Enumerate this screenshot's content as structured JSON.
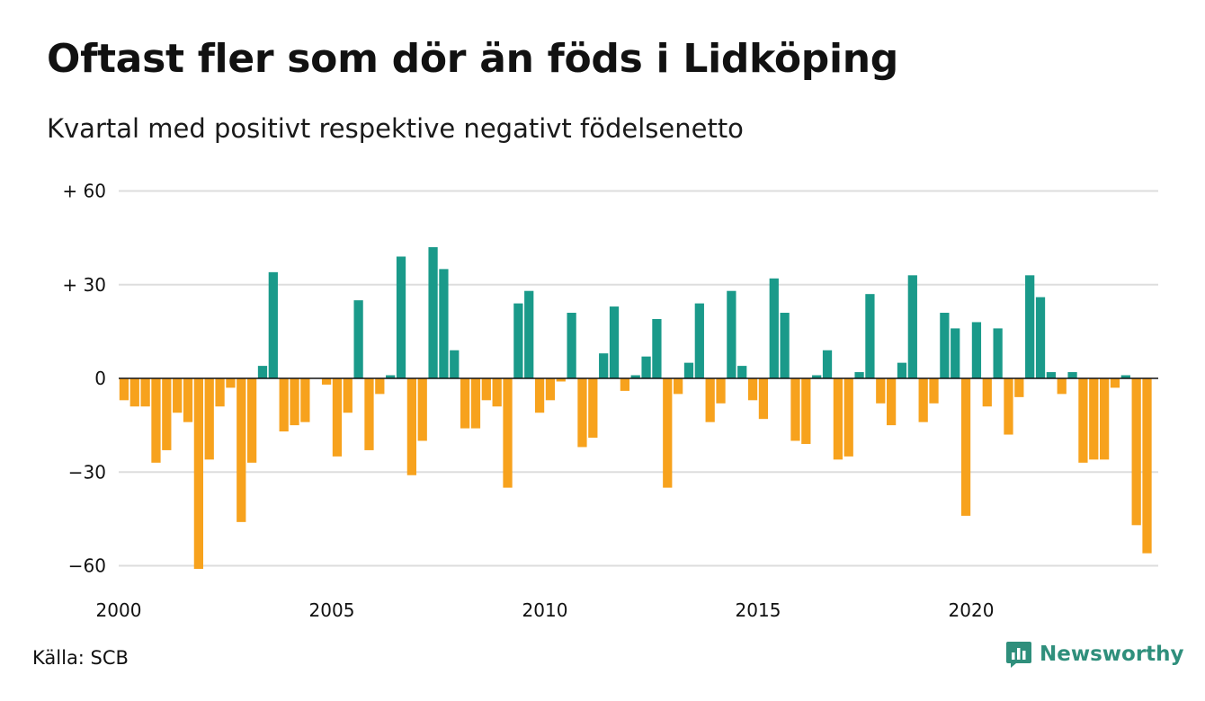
{
  "title": "Oftast fler som dör än föds i Lidköping",
  "subtitle": "Kvartal med positivt respektive negativt födelsenetto",
  "source": "Källa: SCB",
  "brand": {
    "name": "Newsworthy",
    "icon": "newsworthy-logo-icon",
    "color": "#2f8f7c"
  },
  "chart_data": {
    "type": "bar",
    "x_start": "2000 Q1",
    "x_ticks": [
      "2000",
      "2005",
      "2010",
      "2015",
      "2020"
    ],
    "y_ticks": [
      {
        "value": 60,
        "label": "+ 60"
      },
      {
        "value": 30,
        "label": "+ 30"
      },
      {
        "value": 0,
        "label": "0"
      },
      {
        "value": -30,
        "label": "−30"
      },
      {
        "value": -60,
        "label": "−60"
      }
    ],
    "ylim": [
      -62,
      62
    ],
    "grid": true,
    "colors": {
      "positive": "#1a9a8a",
      "negative": "#f7a21d",
      "grid": "#dddddd",
      "baseline": "#111111"
    },
    "values": [
      -7,
      -9,
      -9,
      -27,
      -23,
      -11,
      -14,
      -61,
      -26,
      -9,
      -3,
      -46,
      -27,
      4,
      34,
      -17,
      -15,
      -14,
      0,
      -2,
      -25,
      -11,
      25,
      -23,
      -5,
      1,
      39,
      -31,
      -20,
      42,
      35,
      9,
      -16,
      -16,
      -7,
      -9,
      -35,
      24,
      28,
      -11,
      -7,
      -1,
      21,
      -22,
      -19,
      8,
      23,
      -4,
      1,
      7,
      19,
      -35,
      -5,
      5,
      24,
      -14,
      -8,
      28,
      4,
      -7,
      -13,
      32,
      21,
      -20,
      -21,
      1,
      9,
      -26,
      -25,
      2,
      27,
      -8,
      -15,
      5,
      33,
      -14,
      -8,
      21,
      16,
      -44,
      18,
      -9,
      16,
      -18,
      -6,
      33,
      26,
      2,
      -5,
      2,
      -27,
      -26,
      -26,
      -3,
      1,
      -47,
      -56
    ]
  }
}
